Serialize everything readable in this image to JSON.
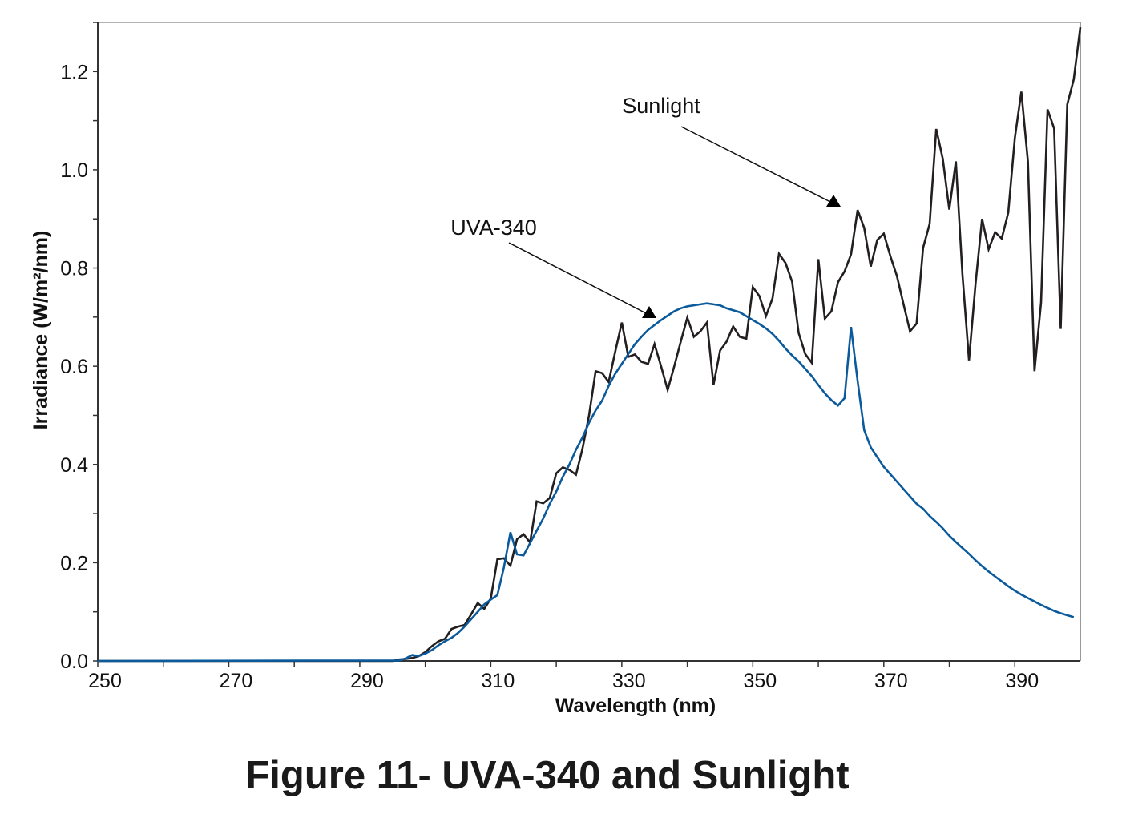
{
  "chart_data": {
    "type": "line",
    "title": "Figure 11- UVA-340 and Sunlight",
    "xlabel": "Wavelength (nm)",
    "ylabel": "Irradiance (W/m²/nm)",
    "xlim": [
      250,
      400
    ],
    "ylim": [
      0,
      1.3
    ],
    "xticks": [
      250,
      270,
      290,
      310,
      330,
      350,
      370,
      390
    ],
    "xminor_step": 10,
    "yticks": [
      "0.0",
      "0.2",
      "0.4",
      "0.6",
      "0.8",
      "1.0",
      "1.2"
    ],
    "yminor_step": 0.1,
    "grid": false,
    "legend": "none (annotated with arrows)",
    "series": [
      {
        "name": "Sunlight",
        "color": "#231f20",
        "points": [
          [
            250,
            0
          ],
          [
            295,
            0
          ],
          [
            296,
            0.003
          ],
          [
            297,
            0.004
          ],
          [
            298,
            0.006
          ],
          [
            299,
            0.01
          ],
          [
            300,
            0.018
          ],
          [
            301,
            0.03
          ],
          [
            302,
            0.04
          ],
          [
            303,
            0.045
          ],
          [
            304,
            0.065
          ],
          [
            305,
            0.07
          ],
          [
            306,
            0.073
          ],
          [
            307,
            0.095
          ],
          [
            308,
            0.118
          ],
          [
            309,
            0.106
          ],
          [
            310,
            0.127
          ],
          [
            311,
            0.207
          ],
          [
            312,
            0.209
          ],
          [
            313,
            0.194
          ],
          [
            314,
            0.248
          ],
          [
            315,
            0.258
          ],
          [
            316,
            0.241
          ],
          [
            317,
            0.325
          ],
          [
            318,
            0.321
          ],
          [
            319,
            0.332
          ],
          [
            320,
            0.382
          ],
          [
            321,
            0.394
          ],
          [
            322,
            0.389
          ],
          [
            323,
            0.379
          ],
          [
            324,
            0.432
          ],
          [
            325,
            0.5
          ],
          [
            326,
            0.59
          ],
          [
            327,
            0.586
          ],
          [
            328,
            0.568
          ],
          [
            329,
            0.63
          ],
          [
            330,
            0.689
          ],
          [
            331,
            0.619
          ],
          [
            332,
            0.624
          ],
          [
            333,
            0.609
          ],
          [
            334,
            0.605
          ],
          [
            335,
            0.645
          ],
          [
            336,
            0.6
          ],
          [
            337,
            0.552
          ],
          [
            338,
            0.6
          ],
          [
            339,
            0.65
          ],
          [
            340,
            0.699
          ],
          [
            341,
            0.66
          ],
          [
            342,
            0.671
          ],
          [
            343,
            0.689
          ],
          [
            344,
            0.562
          ],
          [
            345,
            0.632
          ],
          [
            346,
            0.65
          ],
          [
            347,
            0.681
          ],
          [
            348,
            0.66
          ],
          [
            349,
            0.656
          ],
          [
            350,
            0.761
          ],
          [
            351,
            0.743
          ],
          [
            352,
            0.702
          ],
          [
            353,
            0.738
          ],
          [
            354,
            0.829
          ],
          [
            355,
            0.81
          ],
          [
            356,
            0.772
          ],
          [
            357,
            0.668
          ],
          [
            358,
            0.625
          ],
          [
            359,
            0.607
          ],
          [
            360,
            0.818
          ],
          [
            361,
            0.697
          ],
          [
            362,
            0.712
          ],
          [
            363,
            0.771
          ],
          [
            364,
            0.793
          ],
          [
            365,
            0.828
          ],
          [
            366,
            0.918
          ],
          [
            367,
            0.882
          ],
          [
            368,
            0.803
          ],
          [
            369,
            0.857
          ],
          [
            370,
            0.87
          ],
          [
            371,
            0.824
          ],
          [
            372,
            0.784
          ],
          [
            373,
            0.727
          ],
          [
            374,
            0.671
          ],
          [
            375,
            0.687
          ],
          [
            376,
            0.841
          ],
          [
            377,
            0.89
          ],
          [
            378,
            1.083
          ],
          [
            379,
            1.022
          ],
          [
            380,
            0.919
          ],
          [
            381,
            1.017
          ],
          [
            382,
            0.787
          ],
          [
            383,
            0.612
          ],
          [
            384,
            0.767
          ],
          [
            385,
            0.9
          ],
          [
            386,
            0.838
          ],
          [
            387,
            0.873
          ],
          [
            388,
            0.86
          ],
          [
            389,
            0.913
          ],
          [
            390,
            1.065
          ],
          [
            391,
            1.159
          ],
          [
            392,
            1.017
          ],
          [
            393,
            0.59
          ],
          [
            394,
            0.73
          ],
          [
            395,
            1.123
          ],
          [
            396,
            1.084
          ],
          [
            397,
            0.676
          ],
          [
            398,
            1.133
          ],
          [
            399,
            1.184
          ],
          [
            400,
            1.29
          ]
        ]
      },
      {
        "name": "UVA-340",
        "color": "#0a5a9c",
        "points": [
          [
            250,
            0
          ],
          [
            296,
            0.001
          ],
          [
            297,
            0.005
          ],
          [
            298,
            0.012
          ],
          [
            299,
            0.01
          ],
          [
            300,
            0.015
          ],
          [
            301,
            0.022
          ],
          [
            302,
            0.032
          ],
          [
            303,
            0.04
          ],
          [
            304,
            0.047
          ],
          [
            305,
            0.057
          ],
          [
            306,
            0.07
          ],
          [
            307,
            0.085
          ],
          [
            308,
            0.1
          ],
          [
            309,
            0.115
          ],
          [
            310,
            0.125
          ],
          [
            311,
            0.134
          ],
          [
            312,
            0.19
          ],
          [
            313,
            0.262
          ],
          [
            314,
            0.217
          ],
          [
            315,
            0.215
          ],
          [
            316,
            0.24
          ],
          [
            317,
            0.265
          ],
          [
            318,
            0.29
          ],
          [
            319,
            0.32
          ],
          [
            320,
            0.345
          ],
          [
            321,
            0.375
          ],
          [
            322,
            0.4
          ],
          [
            323,
            0.43
          ],
          [
            324,
            0.455
          ],
          [
            325,
            0.485
          ],
          [
            326,
            0.51
          ],
          [
            327,
            0.53
          ],
          [
            328,
            0.56
          ],
          [
            329,
            0.585
          ],
          [
            330,
            0.605
          ],
          [
            331,
            0.625
          ],
          [
            332,
            0.645
          ],
          [
            333,
            0.66
          ],
          [
            334,
            0.674
          ],
          [
            335,
            0.684
          ],
          [
            336,
            0.694
          ],
          [
            337,
            0.703
          ],
          [
            338,
            0.712
          ],
          [
            339,
            0.718
          ],
          [
            340,
            0.722
          ],
          [
            341,
            0.724
          ],
          [
            342,
            0.726
          ],
          [
            343,
            0.728
          ],
          [
            344,
            0.726
          ],
          [
            345,
            0.724
          ],
          [
            346,
            0.718
          ],
          [
            347,
            0.714
          ],
          [
            348,
            0.71
          ],
          [
            349,
            0.702
          ],
          [
            350,
            0.694
          ],
          [
            351,
            0.686
          ],
          [
            352,
            0.677
          ],
          [
            353,
            0.666
          ],
          [
            354,
            0.652
          ],
          [
            355,
            0.636
          ],
          [
            356,
            0.622
          ],
          [
            357,
            0.61
          ],
          [
            358,
            0.595
          ],
          [
            359,
            0.58
          ],
          [
            360,
            0.562
          ],
          [
            361,
            0.545
          ],
          [
            362,
            0.531
          ],
          [
            363,
            0.52
          ],
          [
            364,
            0.535
          ],
          [
            365,
            0.68
          ],
          [
            366,
            0.57
          ],
          [
            367,
            0.47
          ],
          [
            368,
            0.435
          ],
          [
            369,
            0.415
          ],
          [
            370,
            0.395
          ],
          [
            371,
            0.38
          ],
          [
            372,
            0.365
          ],
          [
            373,
            0.35
          ],
          [
            374,
            0.335
          ],
          [
            375,
            0.32
          ],
          [
            376,
            0.31
          ],
          [
            377,
            0.295
          ],
          [
            378,
            0.283
          ],
          [
            379,
            0.27
          ],
          [
            380,
            0.255
          ],
          [
            381,
            0.242
          ],
          [
            382,
            0.23
          ],
          [
            383,
            0.218
          ],
          [
            384,
            0.205
          ],
          [
            385,
            0.193
          ],
          [
            386,
            0.182
          ],
          [
            387,
            0.172
          ],
          [
            388,
            0.162
          ],
          [
            389,
            0.152
          ],
          [
            390,
            0.143
          ],
          [
            391,
            0.135
          ],
          [
            392,
            0.128
          ],
          [
            393,
            0.121
          ],
          [
            394,
            0.114
          ],
          [
            395,
            0.108
          ],
          [
            396,
            0.102
          ],
          [
            397,
            0.097
          ],
          [
            398,
            0.093
          ],
          [
            399,
            0.089
          ]
        ]
      }
    ],
    "annotations": [
      {
        "text": "Sunlight",
        "series": "Sunlight"
      },
      {
        "text": "UVA-340",
        "series": "UVA-340"
      }
    ]
  }
}
